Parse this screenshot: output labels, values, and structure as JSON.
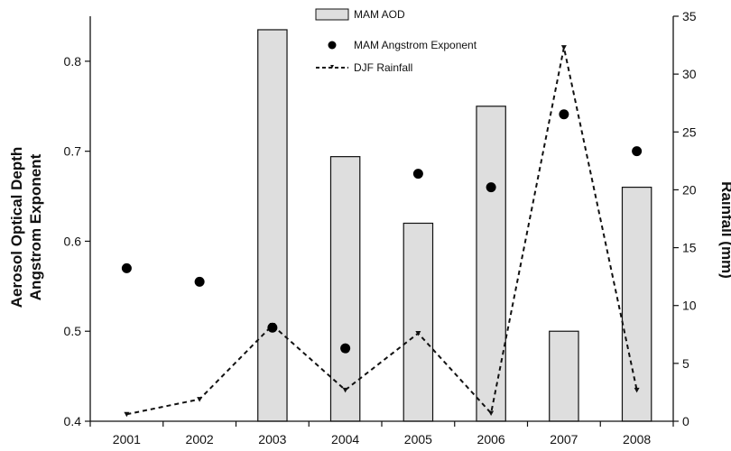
{
  "chart_data": {
    "type": "bar",
    "categories": [
      "2001",
      "2002",
      "2003",
      "2004",
      "2005",
      "2006",
      "2007",
      "2008"
    ],
    "series": [
      {
        "name": "MAM AOD",
        "kind": "bar",
        "axis": "left",
        "values": [
          null,
          null,
          0.835,
          0.694,
          0.62,
          0.75,
          0.5,
          0.66
        ]
      },
      {
        "name": "MAM Angstrom Exponent",
        "kind": "scatter",
        "axis": "left",
        "values": [
          0.57,
          0.555,
          0.504,
          0.481,
          0.675,
          0.66,
          0.741,
          0.7
        ]
      },
      {
        "name": "DJF Rainfall",
        "kind": "line",
        "axis": "right",
        "values": [
          0.6,
          1.9,
          8.3,
          2.7,
          7.6,
          0.7,
          32.3,
          2.7
        ]
      }
    ],
    "ylabel_lines": [
      "Aerosol Optical Depth",
      "Angstrom Exponent"
    ],
    "ylabel_right": "Rainfall (mm)",
    "ylim": [
      0.4,
      0.85
    ],
    "ylim_right": [
      0,
      35
    ],
    "yticks": [
      "0.4",
      "0.5",
      "0.6",
      "0.7",
      "0.8"
    ],
    "yticks_right": [
      "0",
      "5",
      "10",
      "15",
      "20",
      "25",
      "30",
      "35"
    ],
    "grid": false,
    "legend_position": "top-center",
    "colors": {
      "bar_fill": "#dedede",
      "outline": "#111111"
    }
  }
}
